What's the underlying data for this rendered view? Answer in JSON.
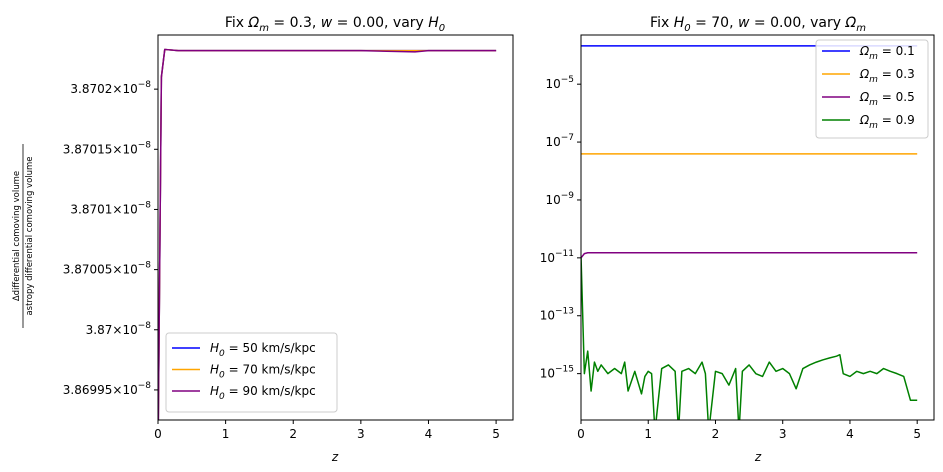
{
  "chart_data": [
    {
      "type": "line",
      "title": "Fix Ωm = 0.3, w = 0.00, vary H0",
      "title_parts": {
        "a": "Fix ",
        "b": "Ω",
        "b_sub": "m",
        "c": " = 0.3, ",
        "d": "w",
        "e": " = 0.00, vary ",
        "f": "H",
        "f_sub": "0"
      },
      "xlabel": "z",
      "ylabel_num": "Δdifferential comoving volume",
      "ylabel_den": "astropy differential comoving volume",
      "xlim": [
        0,
        5.25
      ],
      "ylim": [
        3.869925e-08,
        3.870245e-08
      ],
      "yscale": "log",
      "xticks": [
        0,
        1,
        2,
        3,
        4,
        5
      ],
      "xtick_labels": [
        "0",
        "1",
        "2",
        "3",
        "4",
        "5"
      ],
      "yticks": [
        3.86995e-08,
        3.87e-08,
        3.87005e-08,
        3.8701e-08,
        3.87015e-08,
        3.8702e-08
      ],
      "ytick_labels": [
        {
          "mant": "3.86995",
          "exp": "−8"
        },
        {
          "mant": "3.87",
          "exp": "−8"
        },
        {
          "mant": "3.87005",
          "exp": "−8"
        },
        {
          "mant": "3.8701",
          "exp": "−8"
        },
        {
          "mant": "3.87015",
          "exp": "−8"
        },
        {
          "mant": "3.8702",
          "exp": "−8"
        }
      ],
      "legend_placement": "lower-left",
      "series": [
        {
          "name": "H0 = 50 km/s/kpc",
          "label_var": "H",
          "label_sub": "0",
          "label_rest": " = 50 km/s/kpc",
          "color": "#0000ff",
          "x": [
            0.001,
            0.05,
            0.1,
            0.3,
            1.0,
            2.0,
            3.0,
            4.0,
            5.0
          ],
          "y": [
            3.8699e-08,
            3.87021e-08,
            3.870233e-08,
            3.870232e-08,
            3.870232e-08,
            3.870232e-08,
            3.870232e-08,
            3.870232e-08,
            3.870232e-08
          ]
        },
        {
          "name": "H0 = 70 km/s/kpc",
          "label_var": "H",
          "label_sub": "0",
          "label_rest": " = 70 km/s/kpc",
          "color": "#ffa500",
          "x": [
            0.001,
            0.05,
            0.1,
            0.3,
            1.0,
            2.0,
            3.0,
            4.0,
            5.0
          ],
          "y": [
            3.8699e-08,
            3.87021e-08,
            3.870233e-08,
            3.870232e-08,
            3.870232e-08,
            3.870232e-08,
            3.870232e-08,
            3.870232e-08,
            3.870232e-08
          ]
        },
        {
          "name": "H0 = 90 km/s/kpc",
          "label_var": "H",
          "label_sub": "0",
          "label_rest": " = 90 km/s/kpc",
          "color": "#800080",
          "x": [
            0.001,
            0.05,
            0.1,
            0.3,
            1.0,
            2.0,
            3.0,
            3.8,
            4.0,
            5.0
          ],
          "y": [
            3.8699e-08,
            3.87021e-08,
            3.870233e-08,
            3.870232e-08,
            3.870232e-08,
            3.870232e-08,
            3.870232e-08,
            3.870231e-08,
            3.870232e-08,
            3.870232e-08
          ]
        }
      ]
    },
    {
      "type": "line",
      "title": "Fix H0 = 70, w = 0.00, vary Ωm",
      "title_parts": {
        "a": "Fix ",
        "b": "H",
        "b_sub": "0",
        "c": " = 70, ",
        "d": "w",
        "e": " = 0.00, vary ",
        "f": "Ω",
        "f_sub": "m"
      },
      "xlabel": "z",
      "xlim": [
        0,
        5.25
      ],
      "ylim": [
        2.5e-17,
        0.0005
      ],
      "yscale": "log",
      "xticks": [
        0,
        1,
        2,
        3,
        4,
        5
      ],
      "xtick_labels": [
        "0",
        "1",
        "2",
        "3",
        "4",
        "5"
      ],
      "yticks": [
        1e-15,
        1e-13,
        1e-11,
        1e-09,
        1e-07,
        1e-05
      ],
      "ytick_labels": [
        {
          "mant": "10",
          "exp": "−15"
        },
        {
          "mant": "10",
          "exp": "−13"
        },
        {
          "mant": "10",
          "exp": "−11"
        },
        {
          "mant": "10",
          "exp": "−9"
        },
        {
          "mant": "10",
          "exp": "−7"
        },
        {
          "mant": "10",
          "exp": "−5"
        }
      ],
      "legend_placement": "upper-right",
      "series": [
        {
          "name": "Ωm = 0.1",
          "label_var": "Ω",
          "label_sub": "m",
          "label_rest": " = 0.1",
          "color": "#0000ff",
          "x": [
            0.001,
            1.0,
            2.0,
            3.0,
            4.0,
            5.0
          ],
          "y": [
            0.00021,
            0.00021,
            0.00021,
            0.00021,
            0.00021,
            0.00021
          ]
        },
        {
          "name": "Ωm = 0.3",
          "label_var": "Ω",
          "label_sub": "m",
          "label_rest": " = 0.3",
          "color": "#ffa500",
          "x": [
            0.001,
            1.0,
            2.0,
            3.0,
            4.0,
            5.0
          ],
          "y": [
            3.9e-08,
            3.9e-08,
            3.9e-08,
            3.9e-08,
            3.9e-08,
            3.9e-08
          ]
        },
        {
          "name": "Ωm = 0.5",
          "label_var": "Ω",
          "label_sub": "m",
          "label_rest": " = 0.5",
          "color": "#800080",
          "x": [
            0.001,
            0.05,
            0.1,
            1.0,
            2.0,
            3.0,
            4.0,
            5.0
          ],
          "y": [
            1e-11,
            1.4e-11,
            1.5e-11,
            1.5e-11,
            1.5e-11,
            1.5e-11,
            1.5e-11,
            1.5e-11
          ]
        },
        {
          "name": "Ωm = 0.9",
          "label_var": "Ω",
          "label_sub": "m",
          "label_rest": " = 0.9",
          "color": "#008000",
          "x": [
            0.001,
            0.05,
            0.1,
            0.15,
            0.2,
            0.25,
            0.3,
            0.4,
            0.5,
            0.6,
            0.65,
            0.7,
            0.8,
            0.9,
            0.95,
            1.0,
            1.05,
            1.1,
            1.2,
            1.3,
            1.4,
            1.45,
            1.5,
            1.6,
            1.7,
            1.8,
            1.85,
            1.9,
            2.0,
            2.1,
            2.2,
            2.3,
            2.35,
            2.4,
            2.5,
            2.6,
            2.7,
            2.8,
            2.9,
            3.0,
            3.1,
            3.2,
            3.3,
            3.4,
            3.5,
            3.6,
            3.7,
            3.8,
            3.85,
            3.9,
            4.0,
            4.1,
            4.2,
            4.3,
            4.4,
            4.5,
            4.6,
            4.7,
            4.8,
            4.9,
            4.95,
            5.0
          ],
          "y": [
            1e-11,
            1e-15,
            6e-15,
            2.5e-16,
            2.5e-15,
            1.2e-15,
            2e-15,
            1e-15,
            1.5e-15,
            1e-15,
            2.5e-15,
            2.5e-16,
            1.2e-15,
            2e-16,
            8e-16,
            1.2e-15,
            1e-15,
            1e-17,
            1.5e-15,
            2e-15,
            1.2e-15,
            1e-17,
            1.2e-15,
            1.5e-15,
            1e-15,
            2.5e-15,
            1e-15,
            1e-17,
            1.2e-15,
            1e-15,
            4e-16,
            1.5e-15,
            1e-17,
            1.2e-15,
            2e-15,
            1e-15,
            8e-16,
            2.5e-15,
            1.2e-15,
            1.5e-15,
            1e-15,
            3e-16,
            1.5e-15,
            2e-15,
            2.5e-15,
            3e-15,
            3.5e-15,
            4e-15,
            4.5e-15,
            1e-15,
            8e-16,
            1.2e-15,
            1e-15,
            1.2e-15,
            1e-15,
            1.5e-15,
            1.2e-15,
            1e-15,
            8e-16,
            1.2e-16,
            1.2e-16,
            1.2e-16
          ]
        }
      ]
    }
  ]
}
